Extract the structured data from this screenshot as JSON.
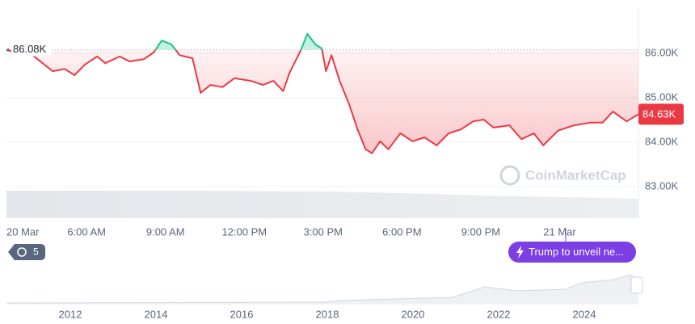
{
  "chart_data": {
    "type": "line",
    "x": [
      2.95,
      3.94,
      4.71,
      5.17,
      5.54,
      5.94,
      6.4,
      6.71,
      7.26,
      7.63,
      8.18,
      8.55,
      8.86,
      9.23,
      9.54,
      10.03,
      10.34,
      10.71,
      11.17,
      11.63,
      12.25,
      12.71,
      13.11,
      13.48,
      13.72,
      14.15,
      14.4,
      14.71,
      14.95,
      15.11,
      15.32,
      15.63,
      16,
      16.31,
      16.62,
      16.86,
      17.17,
      17.48,
      17.94,
      18.4,
      18.86,
      19.32,
      19.78,
      20.25,
      20.71,
      21.11,
      21.48,
      22.09,
      22.55,
      23.02,
      23.38,
      23.94,
      24.55,
      25.17,
      25.63,
      26.03,
      26.55,
      27
    ],
    "series": [
      {
        "color": "#ea3943",
        "values": [
          86070,
          85960,
          85600,
          85650,
          85510,
          85750,
          85930,
          85780,
          85930,
          85820,
          85870,
          86020,
          86290,
          86200,
          85960,
          85890,
          85110,
          85290,
          85240,
          85440,
          85380,
          85290,
          85380,
          85150,
          85560,
          86070,
          86440,
          86200,
          86110,
          85600,
          85960,
          85380,
          84840,
          84290,
          83840,
          83750,
          84020,
          83840,
          84200,
          84020,
          84110,
          83930,
          84200,
          84290,
          84470,
          84510,
          84330,
          84380,
          84070,
          84200,
          83930,
          84260,
          84380,
          84440,
          84440,
          84690,
          84470,
          84630
        ]
      }
    ],
    "above_color": "#16c784",
    "xlim": [
      2.95,
      27
    ],
    "xticks": [
      {
        "value": 0,
        "label": "20 Mar"
      },
      {
        "value": 6,
        "label": "6:00 AM"
      },
      {
        "value": 9,
        "label": "9:00 AM"
      },
      {
        "value": 12,
        "label": "12:00 PM"
      },
      {
        "value": 15,
        "label": "3:00 PM"
      },
      {
        "value": 18,
        "label": "6:00 PM"
      },
      {
        "value": 21,
        "label": "9:00 PM"
      },
      {
        "value": 24,
        "label": "21 Mar"
      }
    ],
    "ylim": [
      82290,
      87020
    ],
    "yticks": [
      {
        "value": 83000,
        "label": "83.00K"
      },
      {
        "value": 84000,
        "label": "84.00K"
      },
      {
        "value": 85000,
        "label": "85.00K"
      },
      {
        "value": 86000,
        "label": "86.00K"
      }
    ],
    "grid": true,
    "reference": {
      "value": 86080,
      "label": "86.08K"
    },
    "last_price": {
      "value": 84630,
      "label": "84.63K"
    }
  },
  "watermark": "CoinMarketCap",
  "events_count": "5",
  "news": "Trump to unveil ne...",
  "navigator": {
    "xticks": [
      "2012",
      "2014",
      "2016",
      "2018",
      "2020",
      "2022",
      "2024"
    ]
  }
}
